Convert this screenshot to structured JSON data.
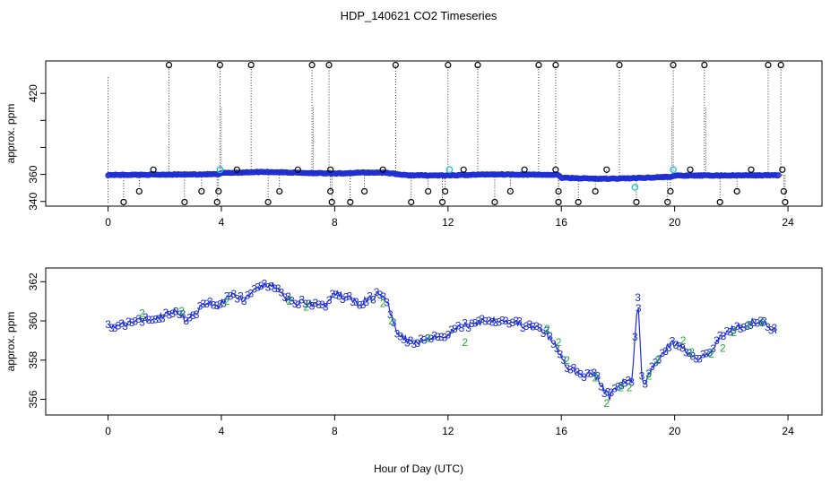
{
  "title": "HDP_140621  CO2 Timeseries",
  "xlabel": "Hour of Day (UTC)",
  "colors": {
    "blue": "#1f2fd0",
    "green": "#1fb033",
    "cyan": "#29c4cf",
    "black": "#000000"
  },
  "chart_data": [
    {
      "type": "scatter",
      "title": "HDP_140621  CO2 Timeseries",
      "ylabel": "approx. ppm",
      "xlim": [
        -2.2,
        25.2
      ],
      "ylim": [
        336.5,
        444
      ],
      "xticks": [
        0,
        4,
        8,
        12,
        16,
        20,
        24
      ],
      "yticks": [
        340,
        360,
        380,
        400,
        420
      ],
      "yticklabels": [
        "340",
        "360",
        "",
        "",
        "420"
      ],
      "baseline": [
        [
          0,
          359.6
        ],
        [
          1.5,
          359.8
        ],
        [
          3,
          360.0
        ],
        [
          3.95,
          360.2
        ],
        [
          4,
          361.0
        ],
        [
          5.5,
          361.9
        ],
        [
          7,
          361.1
        ],
        [
          8,
          360.6
        ],
        [
          9,
          361.4
        ],
        [
          9.8,
          361.3
        ],
        [
          10.5,
          359.4
        ],
        [
          12,
          359.2
        ],
        [
          13.5,
          360.1
        ],
        [
          15,
          359.8
        ],
        [
          15.9,
          359.6
        ],
        [
          16,
          357.5
        ],
        [
          17.5,
          356.7
        ],
        [
          18.5,
          357.2
        ],
        [
          19.9,
          358.3
        ],
        [
          20,
          359.1
        ],
        [
          21.5,
          359.2
        ],
        [
          23.7,
          359.4
        ]
      ],
      "spikes_high": [
        2.15,
        3.95,
        5.05,
        7.2,
        7.8,
        10.15,
        12.0,
        13.05,
        15.2,
        15.8,
        18.05,
        19.95,
        21.05,
        23.3,
        23.75
      ],
      "spikes_mid": [
        1.6,
        4.55,
        6.7,
        7.85,
        9.7,
        12.55,
        14.7,
        15.8,
        17.6,
        20.55,
        22.7,
        23.8
      ],
      "spikes_low": [
        1.1,
        3.3,
        3.9,
        6.05,
        7.85,
        9.05,
        11.3,
        11.9,
        14.2,
        15.9,
        17.2,
        19.85,
        22.2,
        23.85
      ],
      "dips_low": [
        0.55,
        2.7,
        3.85,
        5.65,
        7.9,
        8.55,
        10.7,
        11.8,
        13.65,
        15.9,
        16.6,
        18.65,
        19.75,
        21.6,
        23.9
      ],
      "cyan_points": [
        [
          3.95,
          363.5
        ],
        [
          12.05,
          363.5
        ],
        [
          19.95,
          363.5
        ],
        [
          18.6,
          350.5
        ]
      ]
    },
    {
      "type": "line",
      "ylabel": "approx. ppm",
      "xlim": [
        -2.2,
        25.2
      ],
      "ylim": [
        355.2,
        362.7
      ],
      "xticks": [
        0,
        4,
        8,
        12,
        16,
        20,
        24
      ],
      "yticks": [
        356,
        358,
        360,
        362
      ],
      "series": [
        {
          "name": "3",
          "points": [
            [
              0,
              359.7
            ],
            [
              0.5,
              359.8
            ],
            [
              1,
              360.0
            ],
            [
              1.5,
              360.1
            ],
            [
              2,
              360.3
            ],
            [
              2.4,
              360.6
            ],
            [
              2.7,
              360.1
            ],
            [
              3.0,
              360.3
            ],
            [
              3.3,
              360.7
            ],
            [
              3.6,
              360.9
            ],
            [
              3.9,
              360.7
            ],
            [
              4.0,
              361.0
            ],
            [
              4.4,
              361.3
            ],
            [
              4.8,
              361.1
            ],
            [
              5.2,
              361.5
            ],
            [
              5.6,
              361.9
            ],
            [
              5.9,
              361.7
            ],
            [
              6.2,
              361.2
            ],
            [
              6.6,
              360.9
            ],
            [
              7.0,
              361.0
            ],
            [
              7.4,
              360.8
            ],
            [
              7.8,
              360.9
            ],
            [
              8.0,
              361.4
            ],
            [
              8.4,
              361.2
            ],
            [
              8.8,
              360.9
            ],
            [
              9.2,
              361.1
            ],
            [
              9.6,
              361.4
            ],
            [
              9.9,
              360.7
            ],
            [
              10.2,
              359.5
            ],
            [
              10.6,
              359.0
            ],
            [
              11.0,
              358.9
            ],
            [
              11.4,
              359.2
            ],
            [
              11.8,
              359.2
            ],
            [
              12.0,
              359.3
            ],
            [
              12.4,
              359.7
            ],
            [
              12.8,
              359.8
            ],
            [
              13.2,
              360.0
            ],
            [
              13.6,
              360.1
            ],
            [
              14.0,
              360.0
            ],
            [
              14.4,
              359.9
            ],
            [
              14.8,
              359.7
            ],
            [
              15.2,
              359.6
            ],
            [
              15.5,
              359.3
            ],
            [
              15.8,
              358.7
            ],
            [
              16.1,
              357.8
            ],
            [
              16.4,
              357.5
            ],
            [
              16.7,
              357.2
            ],
            [
              17.0,
              357.4
            ],
            [
              17.3,
              357.0
            ],
            [
              17.5,
              356.5
            ],
            [
              17.7,
              356.1
            ],
            [
              17.9,
              356.6
            ],
            [
              18.2,
              356.9
            ],
            [
              18.5,
              356.9
            ],
            [
              18.7,
              361.2
            ],
            [
              18.85,
              357.0
            ],
            [
              19.0,
              356.9
            ],
            [
              19.3,
              357.8
            ],
            [
              19.6,
              358.5
            ],
            [
              19.9,
              358.8
            ],
            [
              20.1,
              358.9
            ],
            [
              20.4,
              358.5
            ],
            [
              20.8,
              358.1
            ],
            [
              21.2,
              358.4
            ],
            [
              21.6,
              359.1
            ],
            [
              22.0,
              359.6
            ],
            [
              22.4,
              359.8
            ],
            [
              22.8,
              360.0
            ],
            [
              23.2,
              359.9
            ],
            [
              23.6,
              359.5
            ]
          ]
        },
        {
          "name": "2",
          "points": [
            [
              1.2,
              360.4
            ],
            [
              2.6,
              360.5
            ],
            [
              4.2,
              361.0
            ],
            [
              6.4,
              361.0
            ],
            [
              7.0,
              360.7
            ],
            [
              9.7,
              360.9
            ],
            [
              10.0,
              360.0
            ],
            [
              11.3,
              359.1
            ],
            [
              12.6,
              358.9
            ],
            [
              15.5,
              359.6
            ],
            [
              15.9,
              358.9
            ],
            [
              16.2,
              358.0
            ],
            [
              17.2,
              357.1
            ],
            [
              17.6,
              355.8
            ],
            [
              18.1,
              356.6
            ],
            [
              18.4,
              356.6
            ],
            [
              19.1,
              357.2
            ],
            [
              19.4,
              358.0
            ],
            [
              20.3,
              359.0
            ],
            [
              20.6,
              358.4
            ],
            [
              21.3,
              358.3
            ],
            [
              21.7,
              358.6
            ],
            [
              22.1,
              359.4
            ],
            [
              22.6,
              359.8
            ],
            [
              23.1,
              359.9
            ]
          ]
        }
      ]
    }
  ]
}
